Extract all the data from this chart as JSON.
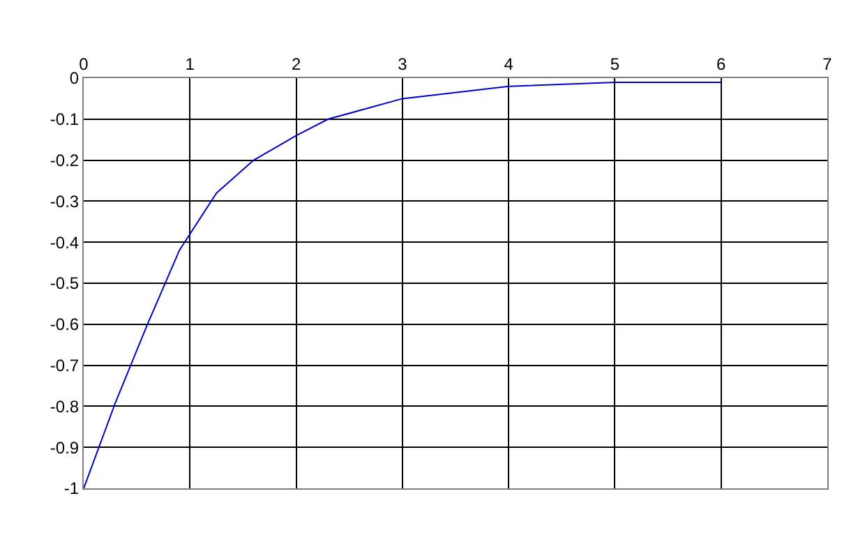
{
  "chart_data": {
    "type": "line",
    "x": [
      0,
      0.3,
      0.6,
      0.9,
      1.25,
      1.6,
      2,
      2.3,
      3,
      4,
      5,
      6
    ],
    "series": [
      {
        "color": "#0000cc",
        "values": [
          -1,
          -0.79,
          -0.6,
          -0.42,
          -0.28,
          -0.2,
          -0.14,
          -0.1,
          -0.05,
          -0.02,
          -0.01,
          -0.01
        ]
      }
    ],
    "xlim": [
      0,
      7
    ],
    "xticks": [
      0,
      1,
      2,
      3,
      4,
      5,
      6,
      7
    ],
    "ylim": [
      -1,
      0
    ],
    "yticks": [
      -1,
      -0.9,
      -0.8,
      -0.7,
      -0.6,
      -0.5,
      -0.4,
      -0.3,
      -0.2,
      -0.1,
      0
    ],
    "grid": true,
    "marker": "none",
    "line_style": "solid"
  }
}
